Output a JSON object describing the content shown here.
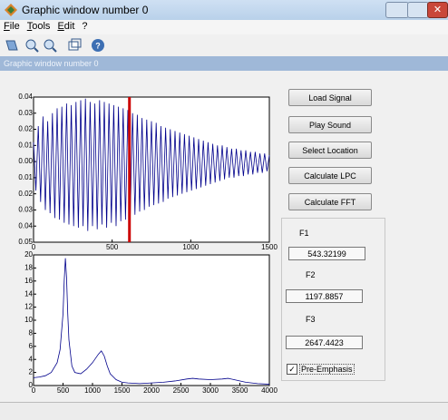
{
  "window": {
    "title": "Graphic window number 0",
    "subtitle": "Graphic window number 0"
  },
  "menu": [
    "File",
    "Tools",
    "Edit",
    "?"
  ],
  "buttons": [
    "Load Signal",
    "Play Sound",
    "Select Location",
    "Calculate LPC",
    "Calculate FFT"
  ],
  "formants": [
    {
      "label": "F1",
      "value": "543.32199"
    },
    {
      "label": "F2",
      "value": "1197.8857"
    },
    {
      "label": "F3",
      "value": "2647.4423"
    }
  ],
  "checkbox": {
    "label": "Pre-Emphasis",
    "checked": true
  },
  "chart_data": [
    {
      "type": "line",
      "color": "#00008b",
      "marker_x": 610,
      "marker_color": "#cc0000",
      "xlim": [
        0,
        1500
      ],
      "xticks": [
        0,
        500,
        1000,
        1500
      ],
      "ylim": [
        -0.05,
        0.04
      ],
      "yticks": [
        {
          "value": 0.04,
          "label": "0.04"
        },
        {
          "value": 0.03,
          "label": "0.03"
        },
        {
          "value": 0.02,
          "label": "0.02"
        },
        {
          "value": 0.01,
          "label": "0.01"
        },
        {
          "value": 0,
          "label": "0.00"
        },
        {
          "value": -0.01,
          "label": "0.01"
        },
        {
          "value": -0.02,
          "label": "0.02"
        },
        {
          "value": -0.03,
          "label": "0.03"
        },
        {
          "value": -0.04,
          "label": "0.04"
        },
        {
          "value": -0.05,
          "label": "0.05"
        }
      ],
      "x": [
        0,
        15,
        30,
        45,
        60,
        75,
        90,
        105,
        120,
        135,
        150,
        165,
        180,
        195,
        210,
        225,
        240,
        255,
        270,
        285,
        300,
        315,
        330,
        345,
        360,
        375,
        390,
        405,
        420,
        435,
        450,
        465,
        480,
        495,
        510,
        525,
        540,
        555,
        570,
        585,
        600,
        615,
        630,
        645,
        660,
        675,
        690,
        705,
        720,
        735,
        750,
        765,
        780,
        795,
        810,
        825,
        840,
        855,
        870,
        885,
        900,
        915,
        930,
        945,
        960,
        975,
        990,
        1005,
        1020,
        1035,
        1050,
        1065,
        1080,
        1095,
        1110,
        1125,
        1140,
        1155,
        1170,
        1185,
        1200,
        1215,
        1230,
        1245,
        1260,
        1275,
        1290,
        1305,
        1320,
        1335,
        1350,
        1365,
        1380,
        1395,
        1410,
        1425,
        1440,
        1455,
        1470,
        1485,
        1500
      ],
      "values": [
        0.012,
        -0.018,
        0.022,
        -0.025,
        0.028,
        -0.03,
        0.025,
        -0.032,
        0.03,
        -0.035,
        0.033,
        -0.036,
        0.034,
        -0.038,
        0.036,
        -0.039,
        0.035,
        -0.04,
        0.037,
        -0.041,
        0.038,
        -0.04,
        0.039,
        -0.043,
        0.037,
        -0.04,
        0.036,
        -0.042,
        0.038,
        -0.039,
        0.037,
        -0.041,
        0.036,
        -0.038,
        0.035,
        -0.04,
        0.034,
        -0.037,
        0.033,
        -0.036,
        0.032,
        -0.034,
        0.03,
        -0.033,
        0.029,
        -0.031,
        0.027,
        -0.03,
        0.026,
        -0.028,
        0.025,
        -0.027,
        0.024,
        -0.026,
        0.022,
        -0.025,
        0.021,
        -0.023,
        0.02,
        -0.022,
        0.019,
        -0.021,
        0.018,
        -0.02,
        0.017,
        -0.019,
        0.016,
        -0.018,
        0.015,
        -0.017,
        0.014,
        -0.016,
        0.013,
        -0.015,
        0.012,
        -0.014,
        0.011,
        -0.013,
        0.01,
        -0.012,
        0.01,
        -0.011,
        0.009,
        -0.01,
        0.008,
        -0.01,
        0.008,
        -0.009,
        0.007,
        -0.009,
        0.007,
        -0.008,
        0.006,
        -0.008,
        0.006,
        -0.007,
        0.005,
        -0.007,
        0.005,
        -0.006,
        0.004
      ]
    },
    {
      "type": "line",
      "color": "#00008b",
      "xlim": [
        0,
        4000
      ],
      "xticks": [
        0,
        500,
        1000,
        1500,
        2000,
        2500,
        3000,
        3500,
        4000
      ],
      "ylim": [
        0,
        20
      ],
      "yticks": [
        0,
        2,
        4,
        6,
        8,
        10,
        12,
        14,
        16,
        18,
        20
      ],
      "x": [
        0,
        100,
        200,
        300,
        400,
        450,
        500,
        520,
        540,
        560,
        580,
        600,
        650,
        700,
        800,
        900,
        1000,
        1100,
        1150,
        1200,
        1250,
        1300,
        1400,
        1500,
        1600,
        1800,
        2000,
        2200,
        2400,
        2600,
        2700,
        2800,
        3000,
        3200,
        3300,
        3400,
        3600,
        3800,
        4000
      ],
      "values": [
        1.2,
        1.3,
        1.5,
        2.0,
        3.5,
        5.5,
        11,
        16,
        19.5,
        16.5,
        11,
        7,
        3,
        2,
        1.8,
        2.5,
        3.5,
        4.8,
        5.3,
        4.5,
        3,
        1.8,
        0.9,
        0.5,
        0.4,
        0.3,
        0.4,
        0.5,
        0.7,
        1.0,
        1.1,
        1.0,
        0.9,
        1.0,
        1.1,
        0.9,
        0.5,
        0.3,
        0.2
      ]
    }
  ]
}
